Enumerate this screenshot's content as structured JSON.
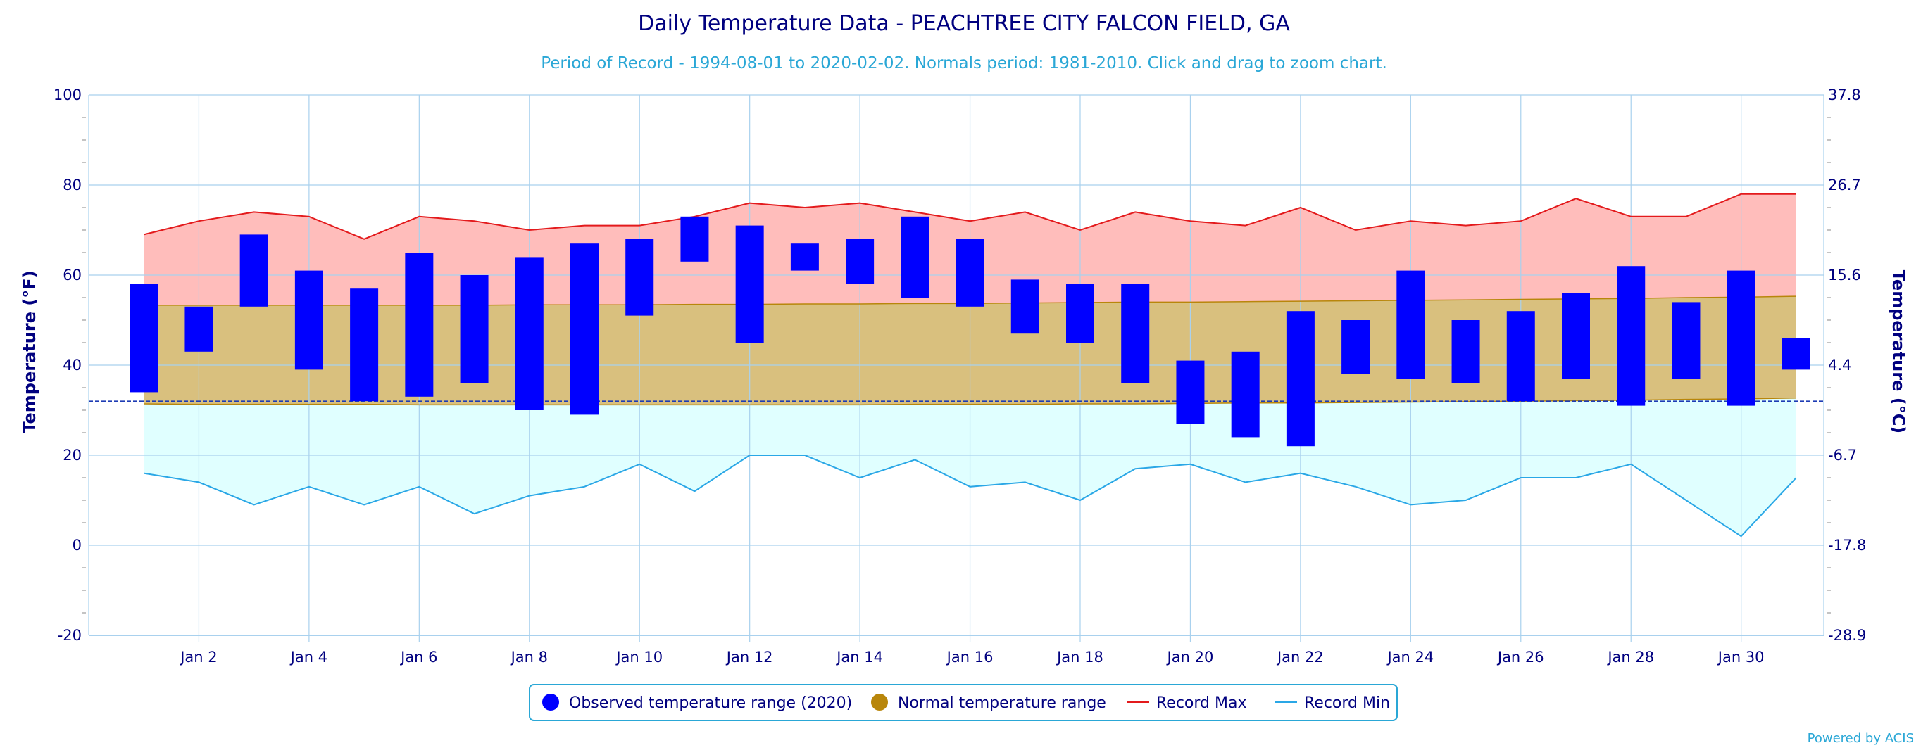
{
  "chart_data": {
    "type": "bar",
    "title": "Daily Temperature Data - PEACHTREE CITY FALCON FIELD, GA",
    "subtitle": "Period of Record - 1994-08-01 to 2020-02-02. Normals period: 1981-2010. Click and drag to zoom chart.",
    "ylabel": "Temperature (°F)",
    "ylabel_right": "Temperature (°C)",
    "ylim": [
      -20,
      100
    ],
    "yticks": [
      "-20",
      "0",
      "20",
      "40",
      "60",
      "80",
      "100"
    ],
    "yticks_right": [
      "-28.9",
      "-17.8",
      "-6.7",
      "4.4",
      "15.6",
      "26.7",
      "37.8"
    ],
    "x": [
      1,
      2,
      3,
      4,
      5,
      6,
      7,
      8,
      9,
      10,
      11,
      12,
      13,
      14,
      15,
      16,
      17,
      18,
      19,
      20,
      21,
      22,
      23,
      24,
      25,
      26,
      27,
      28,
      29,
      30,
      31
    ],
    "xlim": [
      0,
      31.5
    ],
    "xtick_labels": [
      "Jan 2",
      "Jan 4",
      "Jan 6",
      "Jan 8",
      "Jan 10",
      "Jan 12",
      "Jan 14",
      "Jan 16",
      "Jan 18",
      "Jan 20",
      "Jan 22",
      "Jan 24",
      "Jan 26",
      "Jan 28",
      "Jan 30"
    ],
    "xtick_positions": [
      2,
      4,
      6,
      8,
      10,
      12,
      14,
      16,
      18,
      20,
      22,
      24,
      26,
      28,
      30
    ],
    "freezing_line": 32,
    "series": [
      {
        "name": "Observed temperature range (2020)",
        "type": "floating-bar",
        "high": [
          58,
          53,
          69,
          61,
          57,
          65,
          60,
          64,
          67,
          68,
          73,
          71,
          67,
          68,
          73,
          68,
          59,
          58,
          58,
          41,
          43,
          52,
          50,
          61,
          50,
          52,
          56,
          62,
          54,
          61,
          46
        ],
        "low": [
          34,
          43,
          53,
          39,
          32,
          33,
          36,
          30,
          29,
          51,
          63,
          45,
          61,
          58,
          55,
          53,
          47,
          45,
          36,
          27,
          24,
          22,
          38,
          37,
          36,
          32,
          37,
          31,
          37,
          31,
          39
        ]
      },
      {
        "name": "Normal temperature range",
        "type": "area-range",
        "high": [
          53.3,
          53.3,
          53.3,
          53.3,
          53.3,
          53.3,
          53.3,
          53.4,
          53.4,
          53.4,
          53.5,
          53.5,
          53.6,
          53.6,
          53.7,
          53.7,
          53.8,
          53.9,
          54.0,
          54.0,
          54.1,
          54.2,
          54.3,
          54.4,
          54.5,
          54.6,
          54.7,
          54.8,
          55.0,
          55.1,
          55.3
        ],
        "low": [
          31.4,
          31.3,
          31.3,
          31.3,
          31.3,
          31.2,
          31.2,
          31.2,
          31.2,
          31.2,
          31.2,
          31.2,
          31.2,
          31.2,
          31.3,
          31.3,
          31.3,
          31.4,
          31.4,
          31.5,
          31.6,
          31.6,
          31.7,
          31.8,
          31.9,
          32.0,
          32.1,
          32.2,
          32.4,
          32.5,
          32.7
        ]
      },
      {
        "name": "Record Max",
        "type": "line",
        "values": [
          69,
          72,
          74,
          73,
          68,
          73,
          72,
          70,
          71,
          71,
          73,
          76,
          75,
          76,
          74,
          72,
          74,
          70,
          74,
          72,
          71,
          75,
          70,
          72,
          71,
          72,
          77,
          73,
          73,
          78,
          78
        ]
      },
      {
        "name": "Record Min",
        "type": "line",
        "values": [
          16,
          14,
          9,
          13,
          9,
          13,
          7,
          11,
          13,
          18,
          12,
          20,
          20,
          15,
          19,
          13,
          14,
          10,
          17,
          18,
          14,
          16,
          13,
          9,
          10,
          15,
          15,
          18,
          10,
          2,
          15
        ]
      }
    ],
    "colors": {
      "observed": "#0000ff",
      "normal": "#b8860b",
      "normal_fill": "#d9c07e",
      "record_max": "#e31a1c",
      "record_max_fill": "#ffbdbb",
      "record_min": "#2aa7e6",
      "record_min_fill": "#e0ffff",
      "grid": "#a9d1ee",
      "text": "#00007f"
    },
    "legend": {
      "position": "bottom-center",
      "items": [
        "Observed temperature range (2020)",
        "Normal temperature range",
        "Record Max",
        "Record Min"
      ]
    },
    "credit": "Powered by ACIS"
  }
}
